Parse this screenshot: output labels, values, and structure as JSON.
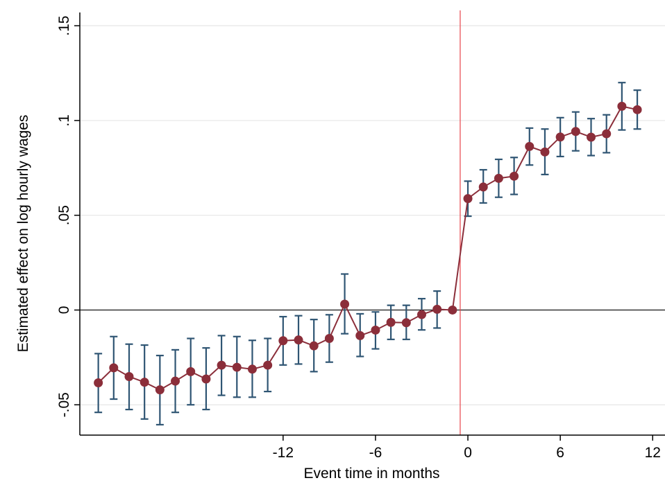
{
  "chart_data": {
    "type": "line",
    "xlabel": "Event time in months",
    "ylabel": "Estimated effect on log hourly wages",
    "xlim": [
      -25.2,
      12.8
    ],
    "ylim": [
      -0.066,
      0.157
    ],
    "x_ticks": [
      {
        "value": -12,
        "label": "-12"
      },
      {
        "value": -6,
        "label": "-6"
      },
      {
        "value": 0,
        "label": "0"
      },
      {
        "value": 6,
        "label": "6"
      },
      {
        "value": 12,
        "label": "12"
      }
    ],
    "y_ticks": [
      {
        "value": -0.05,
        "label": "-.05"
      },
      {
        "value": 0,
        "label": "0"
      },
      {
        "value": 0.05,
        "label": ".05"
      },
      {
        "value": 0.1,
        "label": ".1"
      },
      {
        "value": 0.15,
        "label": ".15"
      }
    ],
    "grid": "horizontal",
    "reference_lines": {
      "horizontal_at": 0,
      "vertical_at": -0.5
    },
    "series": [
      {
        "x": [
          -24,
          -23,
          -22,
          -21,
          -20,
          -19,
          -18,
          -17,
          -16,
          -15,
          -14,
          -13,
          -12,
          -11,
          -10,
          -9,
          -8,
          -7,
          -6,
          -5,
          -4,
          -3,
          -2,
          -1,
          0,
          1,
          2,
          3,
          4,
          5,
          6,
          7,
          8,
          9,
          10,
          11
        ],
        "values": [
          -0.0384,
          -0.0305,
          -0.0351,
          -0.0381,
          -0.0421,
          -0.0375,
          -0.0325,
          -0.0364,
          -0.0291,
          -0.0302,
          -0.0312,
          -0.0291,
          -0.0162,
          -0.0158,
          -0.0189,
          -0.015,
          0.0031,
          -0.0135,
          -0.0106,
          -0.0065,
          -0.0067,
          -0.0024,
          0.0004,
          0.0,
          0.0588,
          0.0649,
          0.0695,
          0.0706,
          0.0863,
          0.0834,
          0.0913,
          0.0942,
          0.0912,
          0.093,
          0.1075,
          0.1057
        ],
        "ci_lower": [
          -0.054,
          -0.047,
          -0.0525,
          -0.0575,
          -0.0605,
          -0.054,
          -0.05,
          -0.0525,
          -0.045,
          -0.046,
          -0.046,
          -0.043,
          -0.029,
          -0.0285,
          -0.0325,
          -0.0275,
          -0.0125,
          -0.0245,
          -0.0205,
          -0.0155,
          -0.0155,
          -0.0105,
          -0.0095,
          0.0,
          0.0495,
          0.0565,
          0.0595,
          0.061,
          0.0765,
          0.0715,
          0.081,
          0.084,
          0.0815,
          0.083,
          0.095,
          0.0955
        ],
        "ci_upper": [
          -0.023,
          -0.014,
          -0.018,
          -0.0185,
          -0.024,
          -0.021,
          -0.015,
          -0.02,
          -0.0135,
          -0.014,
          -0.016,
          -0.015,
          -0.0035,
          -0.003,
          -0.005,
          -0.0025,
          0.019,
          -0.002,
          -0.001,
          0.0025,
          0.0025,
          0.006,
          0.01,
          0.0,
          0.068,
          0.074,
          0.0795,
          0.0805,
          0.096,
          0.0955,
          0.1015,
          0.1045,
          0.101,
          0.103,
          0.12,
          0.116
        ]
      }
    ],
    "colors": {
      "line": "#8B2E3A",
      "marker": "#8B2E3A",
      "error_bar": "#2F5573",
      "vertical_line": "#E8434A",
      "zero_line": "#000000",
      "grid": "#E6E6E6",
      "axis": "#000000"
    }
  }
}
